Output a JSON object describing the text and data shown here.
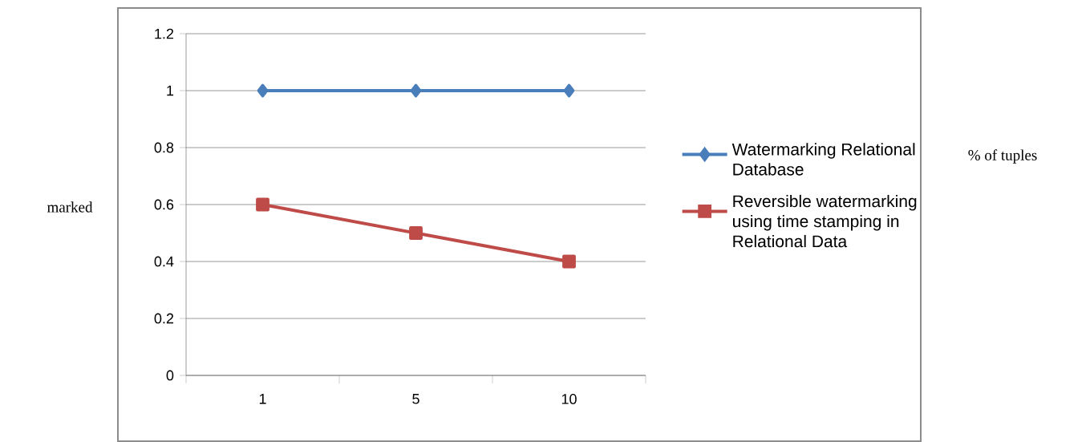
{
  "chart_data": {
    "type": "line",
    "categories": [
      "1",
      "5",
      "10"
    ],
    "series": [
      {
        "name": "Watermarking Relational Database",
        "color": "#4a7ebb",
        "marker": "diamond",
        "values": [
          1,
          1,
          1
        ]
      },
      {
        "name": "Reversible watermarking using time stamping in Relational Data",
        "color": "#be4b48",
        "marker": "square",
        "values": [
          0.6,
          0.5,
          0.4
        ]
      }
    ],
    "ylim": [
      0,
      1.2
    ],
    "yticks": [
      0,
      0.2,
      0.4,
      0.6,
      0.8,
      1,
      1.2
    ],
    "grid": "y",
    "legend": "right",
    "line_style": "solid",
    "annotations": [
      "% of tuples",
      "marked"
    ]
  }
}
